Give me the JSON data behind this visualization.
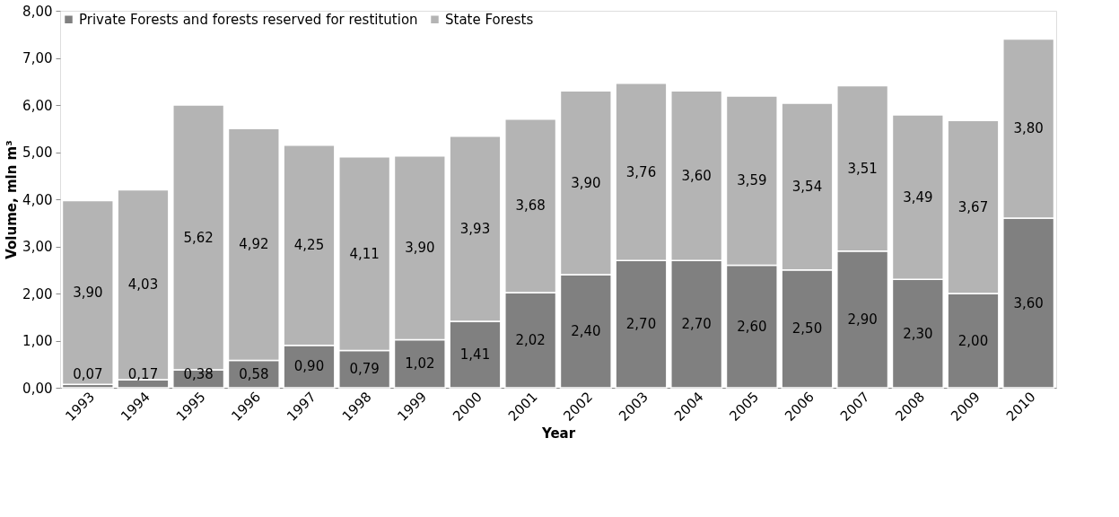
{
  "chart_data": {
    "type": "bar",
    "stacked": true,
    "xlabel": "Year",
    "ylabel": "Volume, mln m³",
    "categories": [
      "1993",
      "1994",
      "1995",
      "1996",
      "1997",
      "1998",
      "1999",
      "2000",
      "2001",
      "2002",
      "2003",
      "2004",
      "2005",
      "2006",
      "2007",
      "2008",
      "2009",
      "2010"
    ],
    "series": [
      {
        "name": "Private Forests and forests reserved for restitution",
        "color": "#808080",
        "values": [
          0.07,
          0.17,
          0.38,
          0.58,
          0.9,
          0.79,
          1.02,
          1.41,
          2.02,
          2.4,
          2.7,
          2.7,
          2.6,
          2.5,
          2.9,
          2.3,
          2.0,
          3.6
        ],
        "value_labels": [
          "0,07",
          "0,17",
          "0,38",
          "0,58",
          "0,90",
          "0,79",
          "1,02",
          "1,41",
          "2,02",
          "2,40",
          "2,70",
          "2,70",
          "2,60",
          "2,50",
          "2,90",
          "2,30",
          "2,00",
          "3,60"
        ]
      },
      {
        "name": "State Forests",
        "color": "#b4b4b4",
        "values": [
          3.9,
          4.03,
          5.62,
          4.92,
          4.25,
          4.11,
          3.9,
          3.93,
          3.68,
          3.9,
          3.76,
          3.6,
          3.59,
          3.54,
          3.51,
          3.49,
          3.67,
          3.8
        ],
        "value_labels": [
          "3,90",
          "4,03",
          "5,62",
          "4,92",
          "4,25",
          "4,11",
          "3,90",
          "3,93",
          "3,68",
          "3,90",
          "3,76",
          "3,60",
          "3,59",
          "3,54",
          "3,51",
          "3,49",
          "3,67",
          "3,80"
        ]
      }
    ],
    "ylim": [
      0,
      8
    ],
    "yticks": [
      {
        "value": 0,
        "label": "0,00"
      },
      {
        "value": 1,
        "label": "1,00"
      },
      {
        "value": 2,
        "label": "2,00"
      },
      {
        "value": 3,
        "label": "3,00"
      },
      {
        "value": 4,
        "label": "4,00"
      },
      {
        "value": 5,
        "label": "5,00"
      },
      {
        "value": 6,
        "label": "6,00"
      },
      {
        "value": 7,
        "label": "7,00"
      },
      {
        "value": 8,
        "label": "8,00"
      }
    ],
    "grid": false,
    "legend": "top left"
  }
}
